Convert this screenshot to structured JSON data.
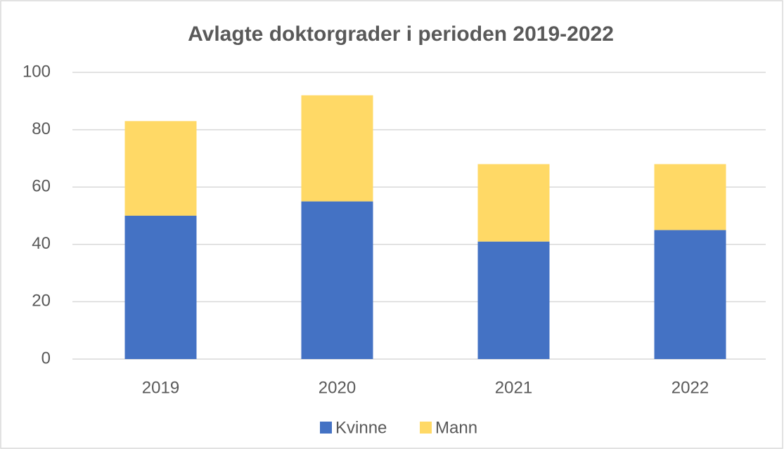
{
  "chart_data": {
    "type": "stacked_bar",
    "title": "Avlagte doktorgrader i perioden 2019-2022",
    "categories": [
      "2019",
      "2020",
      "2021",
      "2022"
    ],
    "series": [
      {
        "name": "Kvinne",
        "color": "#4472c4",
        "values": [
          50,
          55,
          41,
          45
        ]
      },
      {
        "name": "Mann",
        "color": "#ffd966",
        "values": [
          33,
          37,
          27,
          23
        ]
      }
    ],
    "ylim": [
      0,
      100
    ],
    "yticks": [
      0,
      20,
      40,
      60,
      80,
      100
    ],
    "grid": true,
    "legend": "bottom"
  }
}
